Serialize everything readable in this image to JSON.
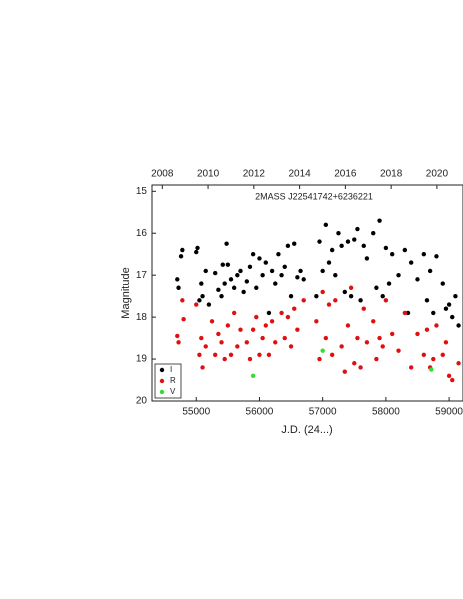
{
  "chart_data": {
    "type": "scatter",
    "title": "2MASS J22541742+6236221",
    "xlabel": "J.D. (24...)",
    "ylabel": "Magnitude",
    "xlim": [
      54300,
      59220
    ],
    "xticks": [
      55000,
      56000,
      57000,
      58000,
      59000
    ],
    "x2lim": [
      2007.55,
      2021.14
    ],
    "x2ticks": [
      2008,
      2010,
      2012,
      2014,
      2016,
      2018,
      2020
    ],
    "ylim": [
      20,
      14.85
    ],
    "yticks": [
      15,
      16,
      17,
      18,
      19,
      20
    ],
    "y_inverted": true,
    "legend": "lower left",
    "series": [
      {
        "name": "I",
        "color": "#000000",
        "x": [
          54700,
          54720,
          54760,
          54780,
          55000,
          55020,
          55050,
          55080,
          55100,
          55150,
          55200,
          55300,
          55350,
          55400,
          55420,
          55450,
          55480,
          55500,
          55550,
          55600,
          55650,
          55700,
          55750,
          55800,
          55850,
          55900,
          55950,
          56000,
          56050,
          56100,
          56150,
          56200,
          56250,
          56300,
          56350,
          56400,
          56450,
          56500,
          56550,
          56600,
          56650,
          56700,
          56900,
          56950,
          57000,
          57050,
          57100,
          57150,
          57200,
          57250,
          57300,
          57350,
          57400,
          57450,
          57500,
          57550,
          57600,
          57650,
          57700,
          57800,
          57850,
          57900,
          57950,
          58000,
          58050,
          58100,
          58200,
          58300,
          58350,
          58400,
          58500,
          58600,
          58650,
          58700,
          58750,
          58800,
          58900,
          58950,
          59000,
          59050,
          59100,
          59150
        ],
        "values": [
          17.1,
          17.3,
          16.55,
          16.4,
          16.45,
          16.35,
          17.6,
          17.2,
          17.5,
          16.9,
          17.7,
          16.95,
          17.35,
          17.5,
          16.75,
          17.2,
          16.25,
          16.75,
          17.1,
          17.3,
          17.0,
          16.9,
          17.4,
          17.15,
          16.8,
          16.5,
          17.3,
          16.6,
          17.0,
          16.7,
          17.9,
          16.9,
          17.2,
          16.5,
          17.0,
          16.8,
          16.3,
          17.5,
          16.25,
          17.05,
          16.9,
          17.1,
          17.5,
          16.2,
          16.9,
          15.8,
          16.7,
          16.4,
          17.0,
          16.0,
          16.3,
          17.4,
          16.2,
          17.5,
          16.15,
          15.9,
          17.6,
          16.3,
          16.6,
          16.0,
          17.3,
          15.7,
          17.5,
          16.35,
          17.2,
          16.5,
          17.0,
          16.4,
          17.9,
          16.7,
          17.1,
          16.5,
          17.6,
          16.9,
          17.9,
          16.55,
          17.2,
          17.8,
          17.7,
          18.0,
          17.5,
          18.2
        ]
      },
      {
        "name": "R",
        "color": "#e01010",
        "x": [
          54700,
          54720,
          54780,
          54800,
          55000,
          55050,
          55080,
          55100,
          55150,
          55250,
          55300,
          55350,
          55400,
          55450,
          55500,
          55550,
          55600,
          55650,
          55700,
          55800,
          55850,
          55900,
          55950,
          56000,
          56050,
          56100,
          56150,
          56200,
          56250,
          56350,
          56400,
          56450,
          56500,
          56550,
          56600,
          56700,
          56900,
          56950,
          57000,
          57050,
          57100,
          57150,
          57200,
          57300,
          57350,
          57400,
          57450,
          57500,
          57550,
          57600,
          57650,
          57700,
          57800,
          57850,
          57900,
          57950,
          58000,
          58100,
          58200,
          58300,
          58400,
          58500,
          58600,
          58650,
          58700,
          58750,
          58800,
          58900,
          58950,
          59000,
          59050,
          59150
        ],
        "values": [
          18.45,
          18.6,
          17.6,
          18.05,
          17.7,
          18.9,
          18.5,
          19.2,
          18.7,
          18.1,
          18.9,
          18.4,
          18.6,
          19.0,
          18.2,
          18.9,
          17.9,
          18.7,
          18.3,
          18.6,
          19.0,
          18.3,
          18.0,
          18.9,
          18.5,
          18.2,
          18.9,
          18.1,
          18.6,
          17.9,
          18.5,
          18.0,
          18.7,
          17.8,
          18.3,
          17.6,
          18.1,
          19.0,
          17.4,
          18.5,
          17.7,
          18.9,
          17.6,
          18.7,
          19.3,
          18.2,
          17.3,
          19.1,
          18.5,
          19.2,
          17.8,
          18.6,
          18.1,
          19.0,
          18.5,
          18.7,
          17.6,
          18.4,
          18.8,
          17.9,
          19.2,
          18.4,
          18.9,
          18.3,
          19.2,
          19.0,
          18.2,
          18.9,
          18.6,
          19.4,
          19.5,
          19.1
        ]
      },
      {
        "name": "V",
        "color": "#33dd33",
        "x": [
          55900,
          57000,
          58720
        ],
        "values": [
          19.4,
          18.8,
          19.25
        ]
      }
    ]
  }
}
